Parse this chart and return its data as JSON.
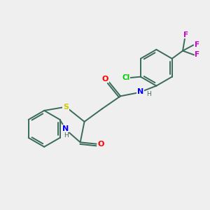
{
  "bg_color": "#efefef",
  "bond_color": "#3a6b5a",
  "figsize": [
    3.0,
    3.0
  ],
  "dpi": 100,
  "atom_colors": {
    "S": "#cccc00",
    "N": "#0000ff",
    "O": "#ff0000",
    "Cl": "#00cc00",
    "F": "#cc00cc"
  },
  "lw": 1.4
}
